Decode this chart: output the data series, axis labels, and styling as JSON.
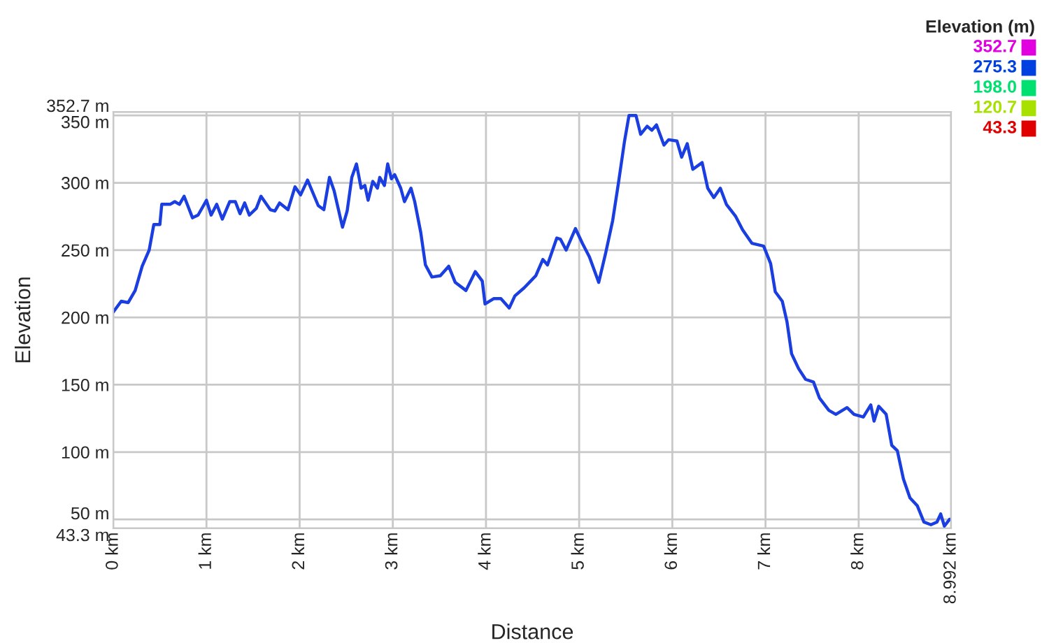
{
  "chart_data": {
    "type": "line",
    "xlabel": "Distance",
    "ylabel": "Elevation",
    "clabel": "Elevation (m)",
    "clim": [
      43.3,
      352.7
    ],
    "cticks": [
      352.7,
      275.3,
      {
        "value": 198,
        "label": "198.0"
      },
      120.7,
      43.3
    ],
    "colors": [
      "#e000e0",
      "#0040e0",
      "#00e070",
      "#a8e000",
      "#e00000"
    ],
    "xlim": [
      0,
      8.992
    ],
    "ylim": [
      43.3,
      352.7
    ],
    "xticks": [
      {
        "value": 0,
        "label": "0 km"
      },
      {
        "value": 1,
        "label": "1 km"
      },
      {
        "value": 2,
        "label": "2 km"
      },
      {
        "value": 3,
        "label": "3 km"
      },
      {
        "value": 4,
        "label": "4 km"
      },
      {
        "value": 5,
        "label": "5 km"
      },
      {
        "value": 6,
        "label": "6 km"
      },
      {
        "value": 7,
        "label": "7 km"
      },
      {
        "value": 8,
        "label": "8 km"
      },
      {
        "value": 8.992,
        "label": "8.992 km"
      }
    ],
    "yticks": [
      {
        "value": 43.3,
        "label": "43.3 m"
      },
      {
        "value": 50,
        "label": "50 m"
      },
      {
        "value": 100,
        "label": "100 m"
      },
      {
        "value": 150,
        "label": "150 m"
      },
      {
        "value": 200,
        "label": "200 m"
      },
      {
        "value": 250,
        "label": "250 m"
      },
      {
        "value": 300,
        "label": "300 m"
      },
      {
        "value": 350,
        "label": "350 m"
      },
      {
        "value": 352.7,
        "label": "352.7 m"
      }
    ],
    "grid": true,
    "series": [
      {
        "color": "#1a3ee0",
        "x": [
          0,
          0.085,
          0.16,
          0.235,
          0.31,
          0.385,
          0.435,
          0.5,
          0.52,
          0.61,
          0.66,
          0.71,
          0.76,
          0.85,
          0.91,
          1.0,
          1.05,
          1.11,
          1.17,
          1.25,
          1.31,
          1.36,
          1.41,
          1.46,
          1.535,
          1.585,
          1.685,
          1.735,
          1.785,
          1.875,
          1.95,
          2.01,
          2.085,
          2.2,
          2.26,
          2.32,
          2.37,
          2.46,
          2.51,
          2.56,
          2.61,
          2.66,
          2.7,
          2.735,
          2.785,
          2.835,
          2.86,
          2.91,
          2.945,
          2.985,
          3.02,
          3.085,
          3.125,
          3.195,
          3.235,
          3.3,
          3.35,
          3.42,
          3.51,
          3.6,
          3.67,
          3.785,
          3.885,
          3.96,
          3.99,
          4.085,
          4.16,
          4.25,
          4.31,
          4.41,
          4.535,
          4.61,
          4.66,
          4.76,
          4.8,
          4.86,
          4.96,
          5.035,
          5.11,
          5.21,
          5.285,
          5.36,
          5.42,
          5.485,
          5.535,
          5.61,
          5.66,
          5.73,
          5.78,
          5.83,
          5.91,
          5.96,
          6.05,
          6.1,
          6.16,
          6.22,
          6.32,
          6.38,
          6.445,
          6.515,
          6.58,
          6.68,
          6.755,
          6.855,
          6.98,
          7.055,
          7.105,
          7.18,
          7.23,
          7.28,
          7.355,
          7.43,
          7.515,
          7.58,
          7.68,
          7.755,
          7.875,
          7.95,
          8.05,
          8.13,
          8.165,
          8.215,
          8.295,
          8.355,
          8.415,
          8.48,
          8.55,
          8.63,
          8.7,
          8.775,
          8.84,
          8.88,
          8.92,
          8.975,
          8.992
        ],
        "values": [
          204,
          212,
          211,
          220,
          238,
          250,
          269,
          269,
          284,
          284,
          286,
          284,
          290,
          274,
          276,
          287,
          276,
          284,
          273,
          286,
          286,
          277,
          285,
          276,
          281,
          290,
          280,
          279,
          285,
          280,
          297,
          291,
          302,
          283,
          280,
          304,
          294,
          267,
          279,
          304,
          314,
          296,
          298,
          287,
          301,
          296,
          304,
          298,
          314,
          303,
          306,
          296,
          286,
          296,
          286,
          263,
          239,
          230,
          231,
          238,
          226,
          220,
          234,
          227,
          210,
          214,
          214,
          207,
          216,
          222,
          231,
          243,
          239,
          259,
          258,
          250,
          266,
          255,
          245,
          226,
          248,
          272,
          299,
          330,
          350,
          350,
          336,
          342,
          339,
          343,
          328,
          332,
          331,
          319,
          329,
          310,
          315,
          296,
          289,
          296,
          284,
          275,
          265,
          255,
          253,
          240,
          219,
          212,
          197,
          173,
          162,
          154,
          152,
          140,
          131,
          128,
          133,
          128,
          126,
          135,
          123,
          134,
          128,
          105,
          101,
          80,
          66,
          60,
          48,
          46,
          48,
          54,
          45,
          50,
          50
        ]
      }
    ]
  }
}
